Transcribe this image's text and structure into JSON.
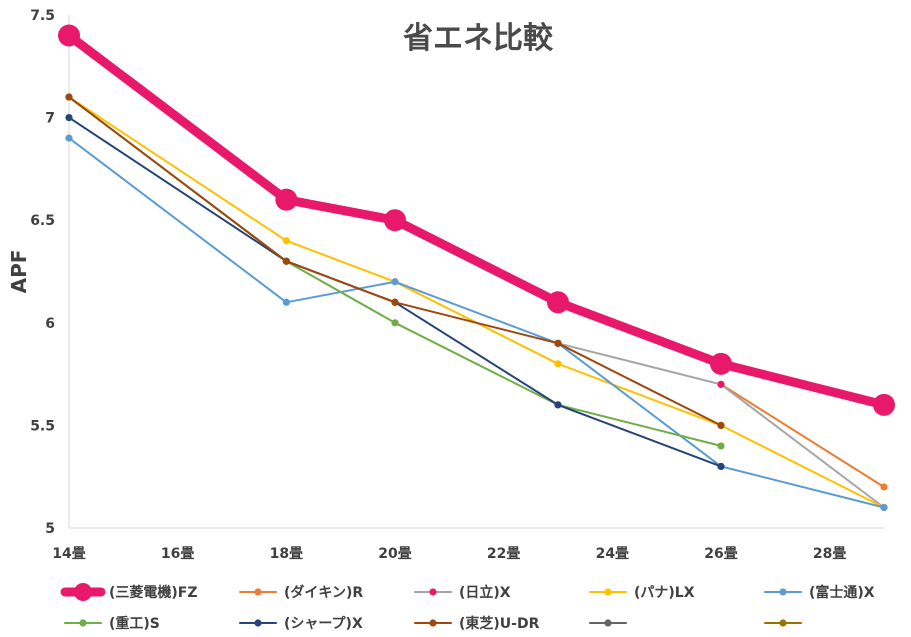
{
  "chart_data": {
    "type": "line",
    "title": "省エネ比較",
    "xlabel": "",
    "ylabel": "APF",
    "xlim": [
      14,
      29
    ],
    "ylim": [
      5,
      7.5
    ],
    "grid": false,
    "legend_position": "bottom",
    "x_ticks": [
      14,
      16,
      18,
      20,
      22,
      24,
      26,
      28
    ],
    "x_tick_labels": [
      "14畳",
      "16畳",
      "18畳",
      "20畳",
      "22畳",
      "24畳",
      "26畳",
      "28畳"
    ],
    "y_ticks": [
      5,
      5.5,
      6,
      6.5,
      7,
      7.5
    ],
    "y_tick_labels": [
      "5",
      "5.5",
      "6",
      "6.5",
      "7",
      "7.5"
    ],
    "series": [
      {
        "name": "(三菱電機)FZ",
        "color": "#e8196a",
        "emphasis": true,
        "x": [
          14,
          18,
          20,
          23,
          26,
          29
        ],
        "y": [
          7.4,
          6.6,
          6.5,
          6.1,
          5.8,
          5.6
        ]
      },
      {
        "name": "(ダイキン)R",
        "color": "#ed7d31",
        "x": [
          26,
          29
        ],
        "y": [
          5.7,
          5.2
        ]
      },
      {
        "name": "(日立)X",
        "color": "#a5a5a5",
        "marker_color": "#e8196a",
        "x": [
          23,
          26,
          29
        ],
        "y": [
          5.9,
          5.7,
          5.1
        ]
      },
      {
        "name": "(パナ)LX",
        "color": "#ffc000",
        "x": [
          14,
          18,
          20,
          23,
          26,
          29
        ],
        "y": [
          7.1,
          6.4,
          6.2,
          5.8,
          5.5,
          5.1
        ]
      },
      {
        "name": "(富士通)X",
        "color": "#5b9bd5",
        "x": [
          14,
          18,
          20,
          23,
          26,
          29
        ],
        "y": [
          6.9,
          6.1,
          6.2,
          5.9,
          5.3,
          5.1
        ]
      },
      {
        "name": "(重工)S",
        "color": "#70ad47",
        "x": [
          14,
          18,
          20,
          23,
          26
        ],
        "y": [
          7.1,
          6.3,
          6.0,
          5.6,
          5.4
        ]
      },
      {
        "name": "(シャープ)X",
        "color": "#264478",
        "x": [
          14,
          18,
          20,
          23,
          26
        ],
        "y": [
          7.0,
          6.3,
          6.1,
          5.6,
          5.3
        ]
      },
      {
        "name": "(東芝)U-DR",
        "color": "#9e480e",
        "x": [
          14,
          18,
          20,
          23,
          26
        ],
        "y": [
          7.1,
          6.3,
          6.1,
          5.9,
          5.5
        ]
      },
      {
        "name": "",
        "color": "#636363",
        "x": [],
        "y": []
      },
      {
        "name": "",
        "color": "#997300",
        "x": [],
        "y": []
      }
    ]
  }
}
